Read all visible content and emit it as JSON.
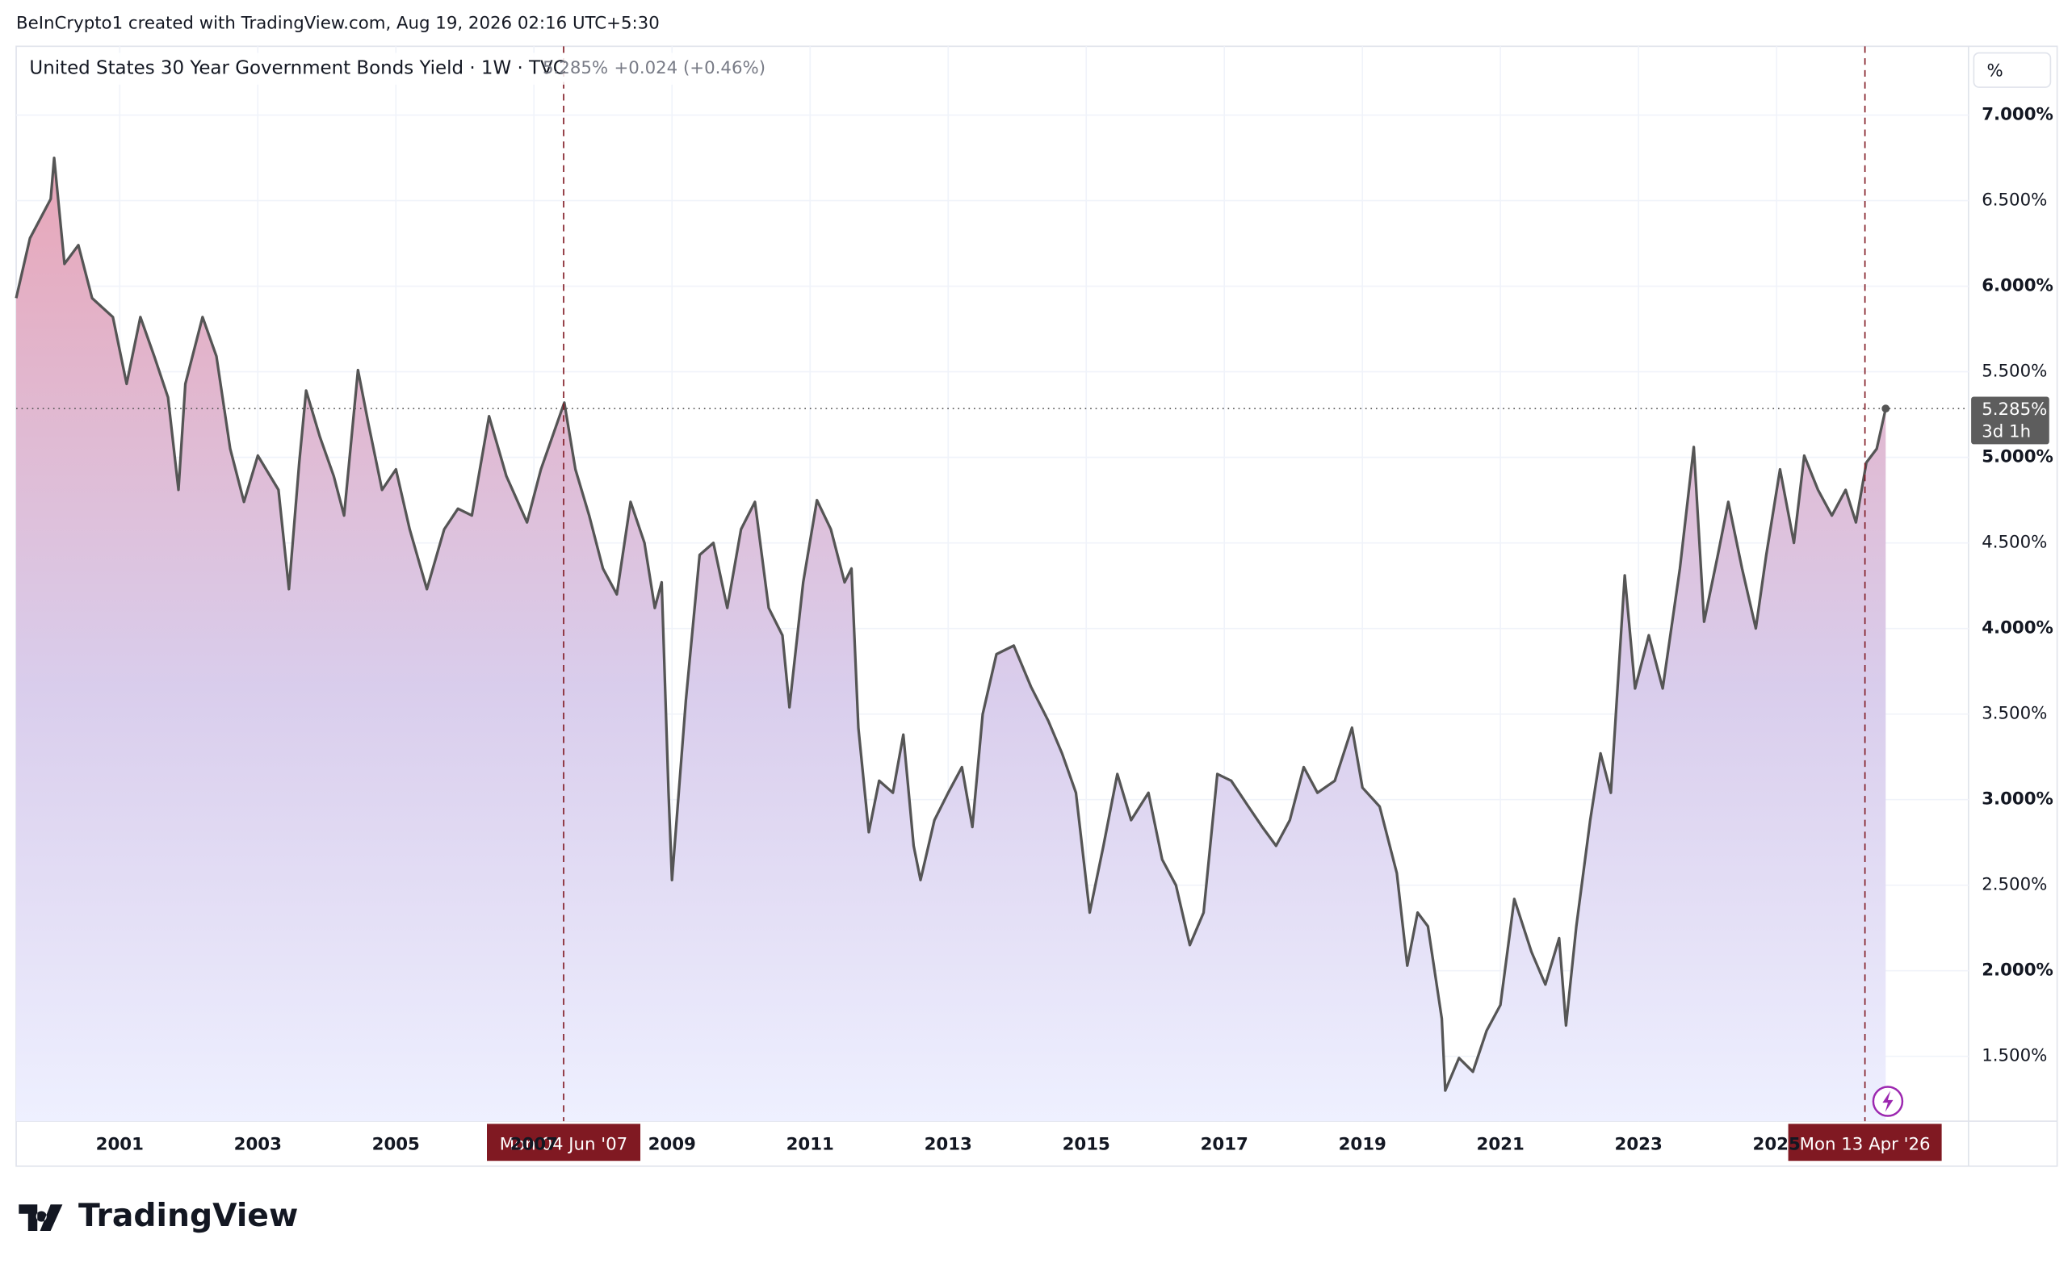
{
  "header": {
    "credit": "BeInCrypto1 created with TradingView.com, Aug 19, 2026 02:16 UTC+5:30",
    "logo": "TradingView",
    "unit_button": "%"
  },
  "chart_data": {
    "type": "area-line",
    "x": [
      1999.5,
      1999.7,
      2000.0,
      2000.05,
      2000.2,
      2000.4,
      2000.6,
      2000.9,
      2001.1,
      2001.3,
      2001.5,
      2001.7,
      2001.85,
      2001.95,
      2002.2,
      2002.4,
      2002.6,
      2002.8,
      2003.0,
      2003.3,
      2003.45,
      2003.6,
      2003.7,
      2003.9,
      2004.1,
      2004.25,
      2004.45,
      2004.6,
      2004.8,
      2005.0,
      2005.2,
      2005.45,
      2005.7,
      2005.9,
      2006.1,
      2006.35,
      2006.6,
      2006.9,
      2007.1,
      2007.44,
      2007.6,
      2007.8,
      2008.0,
      2008.2,
      2008.4,
      2008.6,
      2008.75,
      2008.85,
      2008.95,
      2009.0,
      2009.2,
      2009.4,
      2009.6,
      2009.8,
      2010.0,
      2010.2,
      2010.4,
      2010.6,
      2010.7,
      2010.9,
      2011.1,
      2011.3,
      2011.5,
      2011.6,
      2011.7,
      2011.85,
      2012.0,
      2012.2,
      2012.35,
      2012.5,
      2012.6,
      2012.8,
      2013.0,
      2013.2,
      2013.35,
      2013.5,
      2013.7,
      2013.95,
      2014.2,
      2014.45,
      2014.65,
      2014.85,
      2015.05,
      2015.25,
      2015.45,
      2015.65,
      2015.9,
      2016.1,
      2016.3,
      2016.5,
      2016.7,
      2016.9,
      2017.1,
      2017.35,
      2017.55,
      2017.75,
      2017.95,
      2018.15,
      2018.35,
      2018.6,
      2018.85,
      2019.0,
      2019.25,
      2019.5,
      2019.65,
      2019.8,
      2019.95,
      2020.15,
      2020.2,
      2020.4,
      2020.6,
      2020.8,
      2021.0,
      2021.2,
      2021.45,
      2021.65,
      2021.85,
      2021.95,
      2022.1,
      2022.3,
      2022.45,
      2022.6,
      2022.8,
      2022.95,
      2023.15,
      2023.35,
      2023.6,
      2023.8,
      2023.95,
      2024.15,
      2024.3,
      2024.5,
      2024.7,
      2024.85,
      2025.05,
      2025.25,
      2025.4,
      2025.6,
      2025.8,
      2026.0,
      2026.15,
      2026.3,
      2026.45,
      2026.58
    ],
    "series": [
      {
        "name": "United States 30 Year Government Bonds Yield · 1W · TVC",
        "color": "#555555",
        "values": [
          5.93,
          6.28,
          6.51,
          6.75,
          6.13,
          6.24,
          5.93,
          5.82,
          5.43,
          5.82,
          5.59,
          5.35,
          4.81,
          5.43,
          5.82,
          5.59,
          5.05,
          4.74,
          5.01,
          4.81,
          4.23,
          4.97,
          5.39,
          5.12,
          4.89,
          4.66,
          5.51,
          5.2,
          4.81,
          4.93,
          4.58,
          4.23,
          4.58,
          4.7,
          4.66,
          5.24,
          4.89,
          4.62,
          4.93,
          5.32,
          4.93,
          4.66,
          4.35,
          4.2,
          4.74,
          4.5,
          4.12,
          4.27,
          3.04,
          2.53,
          3.58,
          4.43,
          4.5,
          4.12,
          4.58,
          4.74,
          4.12,
          3.96,
          3.54,
          4.27,
          4.75,
          4.58,
          4.27,
          4.35,
          3.42,
          2.81,
          3.11,
          3.04,
          3.38,
          2.73,
          2.53,
          2.88,
          3.04,
          3.19,
          2.84,
          3.5,
          3.85,
          3.9,
          3.66,
          3.46,
          3.27,
          3.04,
          2.34,
          2.73,
          3.15,
          2.88,
          3.04,
          2.65,
          2.5,
          2.15,
          2.34,
          3.15,
          3.11,
          2.96,
          2.84,
          2.73,
          2.88,
          3.19,
          3.04,
          3.11,
          3.42,
          3.07,
          2.96,
          2.57,
          2.03,
          2.34,
          2.26,
          1.72,
          1.3,
          1.49,
          1.41,
          1.65,
          1.8,
          2.42,
          2.11,
          1.92,
          2.19,
          1.68,
          2.26,
          2.88,
          3.27,
          3.04,
          4.31,
          3.65,
          3.96,
          3.65,
          4.35,
          5.06,
          4.04,
          4.43,
          4.74,
          4.35,
          4.0,
          4.43,
          4.93,
          4.5,
          5.01,
          4.81,
          4.66,
          4.81,
          4.62,
          4.97,
          5.05,
          5.285
        ]
      }
    ],
    "last_price": {
      "value": 5.285,
      "label": "5.285%",
      "countdown": "3d 1h"
    },
    "change_label": "+0.024 (+0.46%)",
    "crosshairs": [
      {
        "x": 2007.43,
        "label": "Mon 04 Jun '07"
      },
      {
        "x": 2026.28,
        "label": "Mon 13 Apr '26"
      }
    ],
    "xlim": [
      1999.5,
      2027.78
    ],
    "xticks": [
      2001,
      2003,
      2005,
      2007,
      2009,
      2011,
      2013,
      2015,
      2017,
      2019,
      2021,
      2023,
      2025
    ],
    "ylim": [
      1.121,
      7.402
    ],
    "yticks": [
      {
        "value": 1.5,
        "label": "1.500%"
      },
      {
        "value": 2,
        "label": "2.000%"
      },
      {
        "value": 2.5,
        "label": "2.500%"
      },
      {
        "value": 3,
        "label": "3.000%"
      },
      {
        "value": 3.5,
        "label": "3.500%"
      },
      {
        "value": 4,
        "label": "4.000%"
      },
      {
        "value": 4.5,
        "label": "4.500%"
      },
      {
        "value": 5,
        "label": "5.000%"
      },
      {
        "value": 5.5,
        "label": "5.500%"
      },
      {
        "value": 6,
        "label": "6.000%"
      },
      {
        "value": 6.5,
        "label": "6.500%"
      },
      {
        "value": 7,
        "label": "7.000%"
      }
    ],
    "grid": true,
    "fill_top_color": "#e8a6b8",
    "fill_bottom_color": "#eef0ff"
  }
}
